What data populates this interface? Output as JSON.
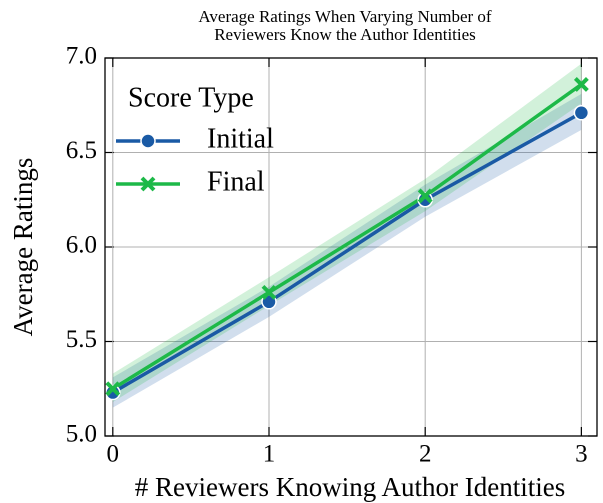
{
  "chart_data": {
    "type": "line",
    "title": [
      "Average Ratings When Varying Number of",
      "Reviewers Know the Author Identities"
    ],
    "x_label": "# Reviewers Knowing Author Identities",
    "y_label": "Average Ratings",
    "x": [
      0,
      1,
      2,
      3
    ],
    "xlim": [
      -0.05,
      3.1
    ],
    "xticks": [
      0,
      1,
      2,
      3
    ],
    "ylim": [
      5.0,
      7.0
    ],
    "yticks": [
      {
        "value": 5.0,
        "label": "5.0"
      },
      5.5,
      {
        "value": 6.0,
        "label": "6.0"
      },
      6.5,
      {
        "value": 7.0,
        "label": "7.0"
      }
    ],
    "grid": true,
    "legend_title": "Score Type",
    "legend_position": "upper left",
    "series": [
      {
        "name": "Initial",
        "color": "#1a5aa5",
        "marker": "circle",
        "values": [
          5.23,
          5.71,
          6.25,
          6.71
        ],
        "lower": [
          5.15,
          5.63,
          6.16,
          6.62
        ],
        "upper": [
          5.31,
          5.79,
          6.33,
          6.81
        ]
      },
      {
        "name": "Final",
        "color": "#1db948",
        "marker": "x",
        "values": [
          5.25,
          5.76,
          6.27,
          6.86
        ],
        "lower": [
          5.18,
          5.69,
          6.19,
          6.76
        ],
        "upper": [
          5.33,
          5.84,
          6.36,
          6.97
        ]
      }
    ]
  }
}
